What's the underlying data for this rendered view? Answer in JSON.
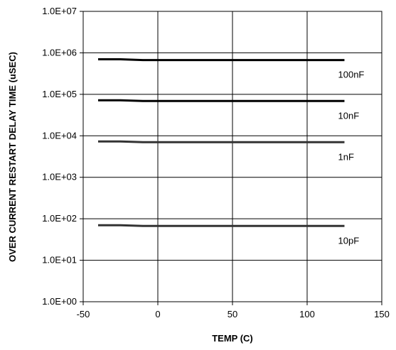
{
  "chart_data": {
    "type": "line",
    "title": "",
    "xlabel": "TEMP (C)",
    "ylabel": "OVER CURRENT RESTART DELAY TIME (uSEC)",
    "xlim": [
      -50,
      150
    ],
    "ylim": [
      1,
      10000000
    ],
    "yscale": "log",
    "grid": true,
    "x_ticks": [
      "-50",
      "0",
      "50",
      "100",
      "150"
    ],
    "y_ticks": [
      "1.0E+00",
      "1.0E+01",
      "1.0E+02",
      "1.0E+03",
      "1.0E+04",
      "1.0E+05",
      "1.0E+06",
      "1.0E+07"
    ],
    "x": [
      -40,
      -25,
      -10,
      0,
      25,
      50,
      75,
      100,
      125
    ],
    "series": [
      {
        "name": "100nF",
        "color": "#000000",
        "values": [
          700000,
          700000,
          670000,
          670000,
          670000,
          670000,
          670000,
          670000,
          670000
        ]
      },
      {
        "name": "10nF",
        "color": "#000000",
        "values": [
          72000,
          72000,
          69000,
          69000,
          69000,
          69000,
          69000,
          69000,
          69000
        ]
      },
      {
        "name": "1nF",
        "color": "#333333",
        "values": [
          7300,
          7300,
          7000,
          7000,
          7000,
          7000,
          7000,
          7000,
          7000
        ]
      },
      {
        "name": "10pF",
        "color": "#333333",
        "values": [
          70,
          70,
          67,
          67,
          67,
          67,
          67,
          67,
          67
        ]
      }
    ]
  }
}
